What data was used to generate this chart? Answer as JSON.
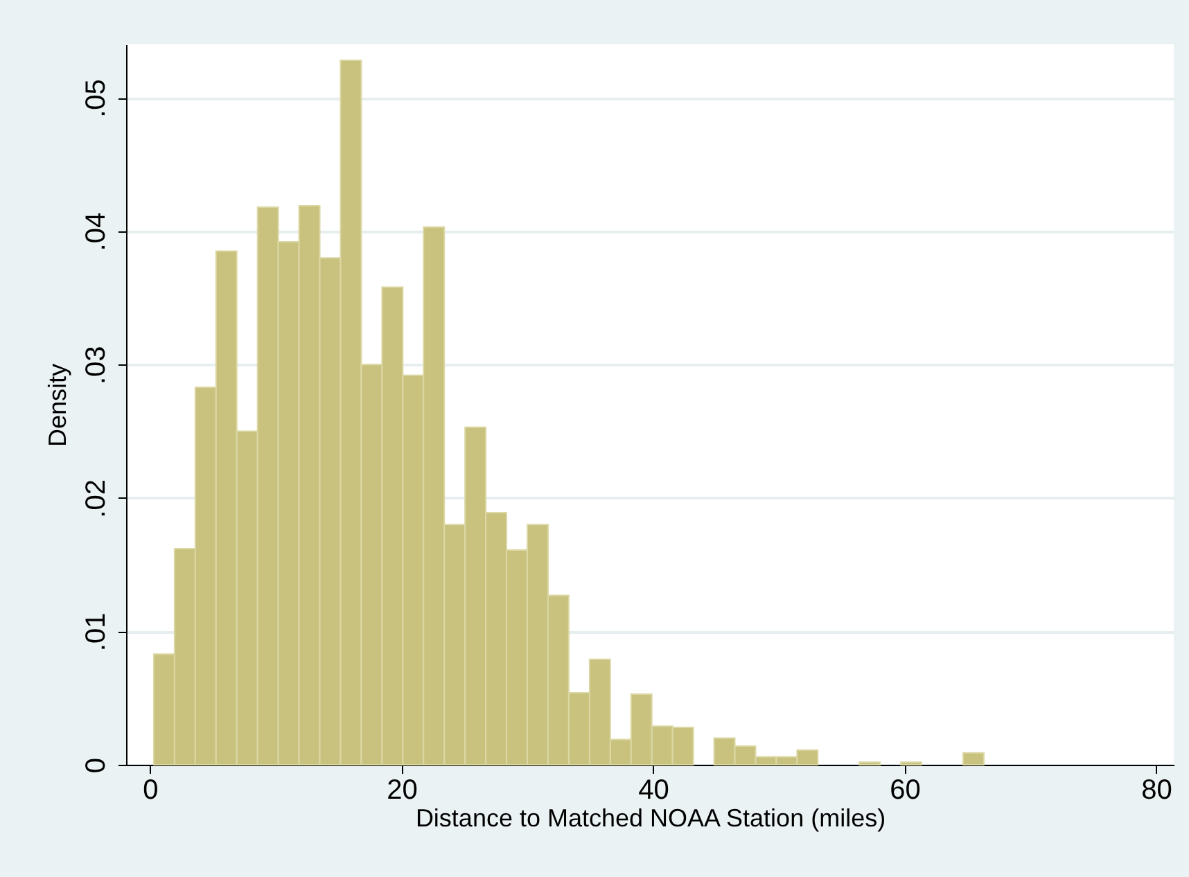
{
  "chart_data": {
    "type": "histogram",
    "xlabel": "Distance to Matched NOAA Station (miles)",
    "ylabel": "Density",
    "bins": [
      0.3,
      1.95,
      3.6,
      5.25,
      6.9,
      8.55,
      10.2,
      11.85,
      13.5,
      15.15,
      16.8,
      18.45,
      20.1,
      21.75,
      23.4,
      25.05,
      26.7,
      28.35,
      30.0,
      31.65,
      33.3,
      34.95,
      36.6,
      38.25,
      39.9,
      41.55,
      43.2,
      44.85,
      46.5,
      48.15,
      49.8,
      51.45,
      53.1,
      54.75,
      56.4,
      58.05,
      59.7,
      61.35,
      63.0,
      64.65,
      66.3
    ],
    "values": [
      0.0083,
      0.0162,
      0.0283,
      0.0385,
      0.025,
      0.0418,
      0.0392,
      0.0419,
      0.038,
      0.0528,
      0.03,
      0.0358,
      0.0292,
      0.0403,
      0.018,
      0.0253,
      0.0189,
      0.0161,
      0.018,
      0.0127,
      0.0054,
      0.0079,
      0.0019,
      0.0053,
      0.0029,
      0.0028,
      0,
      0.002,
      0.0014,
      0.0006,
      0.0006,
      0.0011,
      0,
      0,
      0.0002,
      0,
      0.0002,
      0,
      0,
      0.0009
    ],
    "color": "#c9c27f",
    "xlim": [
      -1.9,
      81.4
    ],
    "xticks": [
      0,
      20,
      40,
      60,
      80
    ],
    "ylim": [
      0,
      0.054
    ],
    "yticks": [
      0,
      {
        "value": 0.01,
        "label": ".01"
      },
      {
        "value": 0.02,
        "label": ".02"
      },
      {
        "value": 0.03,
        "label": ".03"
      },
      {
        "value": 0.04,
        "label": ".04"
      },
      {
        "value": 0.05,
        "label": ".05"
      }
    ],
    "grid": "y"
  }
}
